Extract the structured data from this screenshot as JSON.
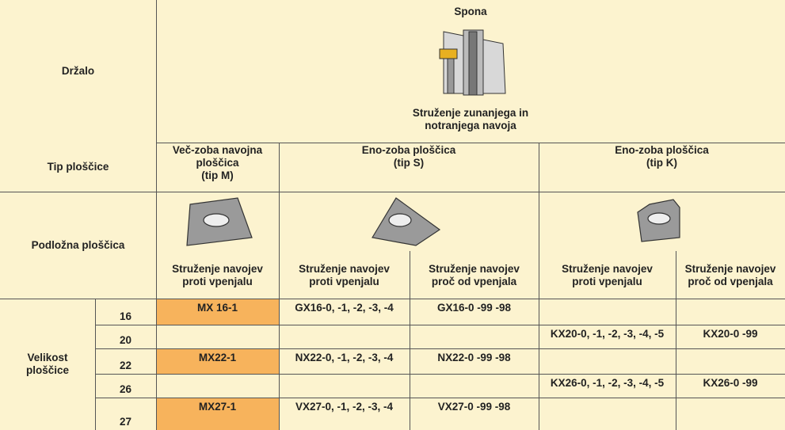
{
  "header": {
    "holder": "Držalo",
    "tool": "Spona",
    "operation": [
      "Struženje zunanjega in",
      "notranjega navoja"
    ]
  },
  "types": {
    "label": "Tip ploščice",
    "items": [
      [
        "Več-zoba navojna",
        "ploščica",
        "(tip M)"
      ],
      [
        "Eno-zoba ploščica",
        "(tip S)"
      ],
      [
        "Eno-zoba ploščica",
        "(tip K)"
      ]
    ]
  },
  "shim": {
    "label": "Podložna ploščica",
    "subs": [
      [
        "Struženje navojev",
        "proti vpenjalu"
      ],
      [
        "Struženje navojev",
        "proti vpenjalu"
      ],
      [
        "Struženje navojev",
        "proč  od vpenjala"
      ],
      [
        "Struženje navojev",
        "proti vpenjalu"
      ],
      [
        "Struženje navojev",
        "proč od vpenjala"
      ]
    ]
  },
  "size": {
    "label": [
      "Velikost",
      "ploščice"
    ],
    "rows": [
      {
        "size": "16",
        "cells": [
          "MX 16-1",
          "GX16-0, -1, -2, -3, -4",
          "GX16-0 -99 -98",
          null,
          null
        ]
      },
      {
        "size": "20",
        "cells": [
          null,
          null,
          null,
          "KX20-0, -1, -2, -3, -4, -5",
          "KX20-0 -99"
        ]
      },
      {
        "size": "22",
        "cells": [
          "MX22-1",
          "NX22-0, -1, -2, -3, -4",
          "NX22-0 -99 -98",
          null,
          null
        ]
      },
      {
        "size": "26",
        "cells": [
          null,
          null,
          null,
          "KX26-0, -1, -2, -3, -4, -5",
          "KX26-0 -99"
        ]
      },
      {
        "size": "27",
        "cells": [
          "MX27-1",
          "VX27-0, -1, -2, -3, -4",
          "VX27-0 -99 -98",
          null,
          null
        ]
      }
    ]
  }
}
